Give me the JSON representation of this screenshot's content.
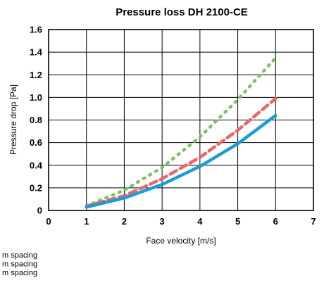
{
  "chart_data": {
    "type": "line",
    "title": "Pressure loss DH 2100-CE",
    "xlabel": "Face velocity [m/s]",
    "ylabel": "Pressure drop  [Pa]",
    "xlim": [
      0,
      7
    ],
    "ylim": [
      0,
      1.6
    ],
    "x_ticks": [
      "0",
      "1",
      "2",
      "3",
      "4",
      "5",
      "6",
      "7"
    ],
    "y_ticks": [
      "0",
      "0.2",
      "0.4",
      "0.6",
      "0.8",
      "1.0",
      "1.2",
      "1.4",
      "1.6"
    ],
    "grid": true,
    "series": [
      {
        "name": "m spacing",
        "color": "#7fc06a",
        "style": "dotted",
        "x": [
          1,
          2,
          3,
          4,
          5,
          6
        ],
        "y": [
          0.04,
          0.18,
          0.38,
          0.65,
          0.98,
          1.35
        ]
      },
      {
        "name": "m spacing",
        "color": "#e8686a",
        "style": "dashed",
        "x": [
          1,
          2,
          3,
          4,
          5,
          6
        ],
        "y": [
          0.04,
          0.13,
          0.28,
          0.47,
          0.71,
          0.99
        ]
      },
      {
        "name": "m spacing",
        "color": "#1b9bd7",
        "style": "solid",
        "x": [
          1,
          2,
          3,
          4,
          5,
          6
        ],
        "y": [
          0.03,
          0.11,
          0.23,
          0.39,
          0.59,
          0.84
        ]
      }
    ]
  }
}
